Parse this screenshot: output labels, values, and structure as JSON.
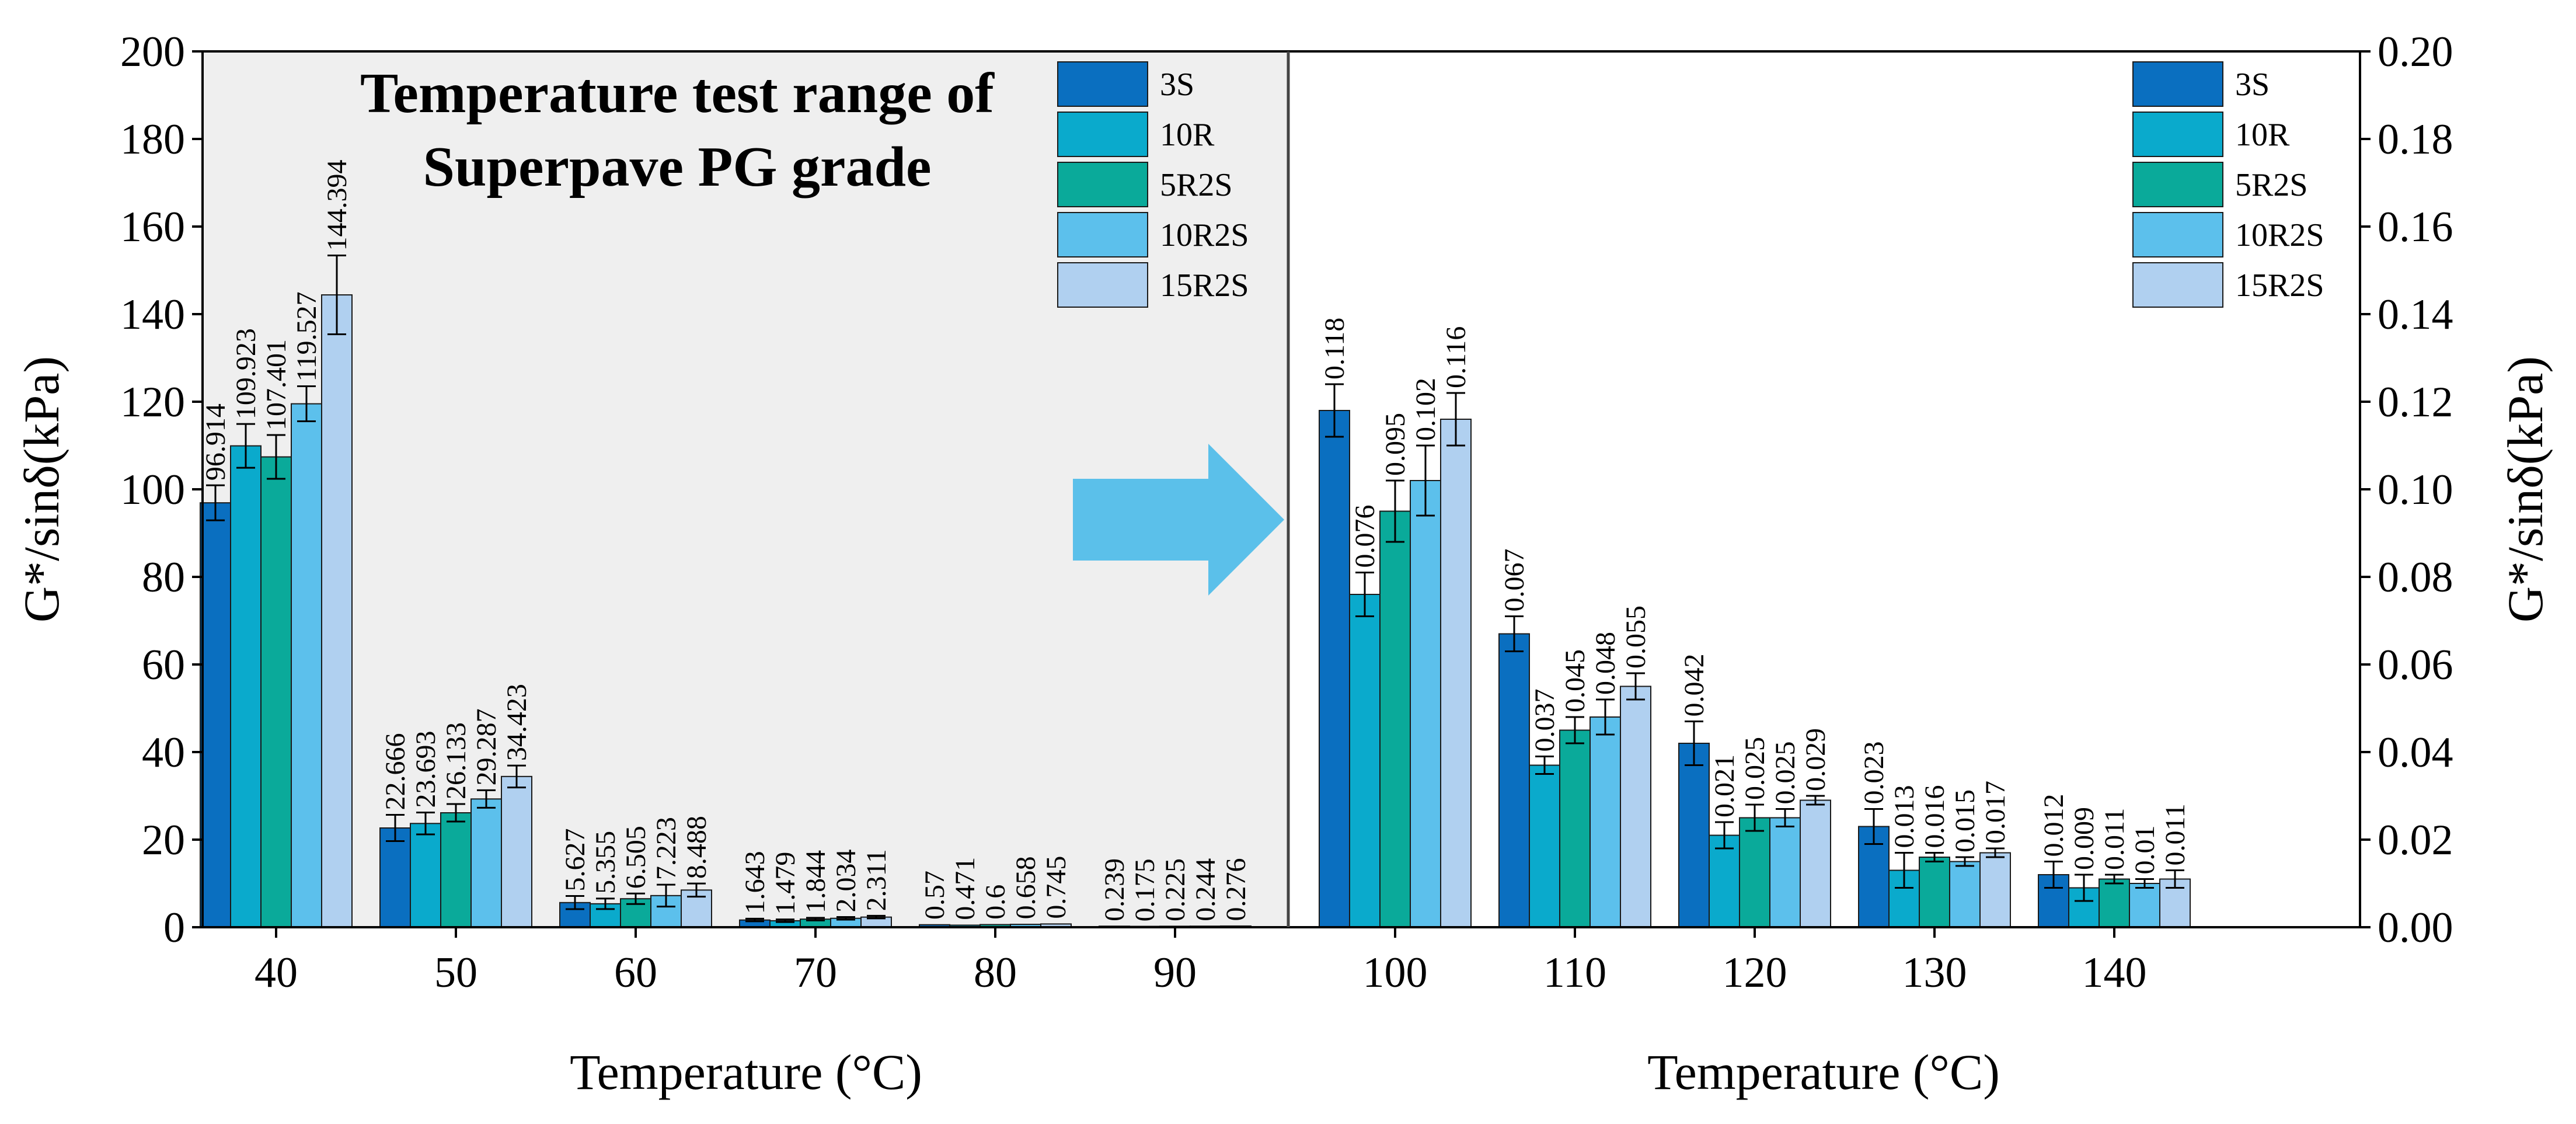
{
  "chart_data": [
    {
      "type": "bar",
      "panel": "left",
      "annotation_lines": [
        "Temperature test range of",
        "Superpave PG grade"
      ],
      "categories": [
        "40",
        "50",
        "60",
        "70",
        "80",
        "90"
      ],
      "xlabel": "Temperature (°C)",
      "ylabel": "G*/sinδ(kPa)",
      "ylim": [
        0,
        200
      ],
      "yticks": [
        "0",
        "20",
        "40",
        "60",
        "80",
        "100",
        "120",
        "140",
        "160",
        "180",
        "200"
      ],
      "legend_position": "top-right",
      "series": [
        {
          "name": "3S",
          "color": "#0a6fc0",
          "values": [
            96.914,
            22.666,
            5.627,
            1.643,
            0.57,
            0.239
          ],
          "errors": [
            4,
            3,
            1.5,
            0.3,
            0.1,
            0.05
          ],
          "labels": [
            "96.914",
            "22.666",
            "5.627",
            "1.643",
            "0.57",
            "0.239"
          ]
        },
        {
          "name": "10R",
          "color": "#0aaacc",
          "values": [
            109.923,
            23.693,
            5.355,
            1.479,
            0.471,
            0.175
          ],
          "errors": [
            5,
            2.5,
            1.2,
            0.3,
            0.1,
            0.05
          ],
          "labels": [
            "109.923",
            "23.693",
            "5.355",
            "1.479",
            "0.471",
            "0.175"
          ]
        },
        {
          "name": "5R2S",
          "color": "#0aaa9a",
          "values": [
            107.401,
            26.133,
            6.505,
            1.844,
            0.6,
            0.225
          ],
          "errors": [
            5,
            2,
            1.2,
            0.3,
            0.1,
            0.05
          ],
          "labels": [
            "107.401",
            "26.133",
            "6.505",
            "1.844",
            "0.6",
            "0.225"
          ]
        },
        {
          "name": "10R2S",
          "color": "#5cc0ec",
          "values": [
            119.527,
            29.287,
            7.223,
            2.034,
            0.658,
            0.244
          ],
          "errors": [
            4,
            2,
            2.5,
            0.3,
            0.1,
            0.05
          ],
          "labels": [
            "119.527",
            "29.287",
            "7.223",
            "2.034",
            "0.658",
            "0.244"
          ]
        },
        {
          "name": "15R2S",
          "color": "#b0d0f0",
          "values": [
            144.394,
            34.423,
            8.488,
            2.311,
            0.745,
            0.276
          ],
          "errors": [
            9,
            2.5,
            1.5,
            0.3,
            0.1,
            0.05
          ],
          "labels": [
            "144.394",
            "34.423",
            "8.488",
            "2.311",
            "0.745",
            "0.276"
          ]
        }
      ]
    },
    {
      "type": "bar",
      "panel": "right",
      "categories": [
        "100",
        "110",
        "120",
        "130",
        "140"
      ],
      "xlabel": "Temperature (°C)",
      "ylabel": "G*/sinδ(kPa)",
      "ylim": [
        0,
        0.2
      ],
      "yticks": [
        "0.00",
        "0.02",
        "0.04",
        "0.06",
        "0.08",
        "0.10",
        "0.12",
        "0.14",
        "0.16",
        "0.18",
        "0.20"
      ],
      "legend_position": "top-right",
      "series": [
        {
          "name": "3S",
          "color": "#0a6fc0",
          "values": [
            0.118,
            0.067,
            0.042,
            0.023,
            0.012
          ],
          "errors": [
            0.006,
            0.004,
            0.005,
            0.004,
            0.003
          ],
          "labels": [
            "0.118",
            "0.067",
            "0.042",
            "0.023",
            "0.012"
          ]
        },
        {
          "name": "10R",
          "color": "#0aaacc",
          "values": [
            0.076,
            0.037,
            0.021,
            0.013,
            0.009
          ],
          "errors": [
            0.005,
            0.002,
            0.003,
            0.004,
            0.003
          ],
          "labels": [
            "0.076",
            "0.037",
            "0.021",
            "0.013",
            "0.009"
          ]
        },
        {
          "name": "5R2S",
          "color": "#0aaa9a",
          "values": [
            0.095,
            0.045,
            0.025,
            0.016,
            0.011
          ],
          "errors": [
            0.007,
            0.003,
            0.003,
            0.001,
            0.001
          ],
          "labels": [
            "0.095",
            "0.045",
            "0.025",
            "0.016",
            "0.011"
          ]
        },
        {
          "name": "10R2S",
          "color": "#5cc0ec",
          "values": [
            0.102,
            0.048,
            0.025,
            0.015,
            0.01
          ],
          "errors": [
            0.008,
            0.004,
            0.002,
            0.001,
            0.001
          ],
          "labels": [
            "0.102",
            "0.048",
            "0.025",
            "0.015",
            "0.01"
          ]
        },
        {
          "name": "15R2S",
          "color": "#b0d0f0",
          "values": [
            0.116,
            0.055,
            0.029,
            0.017,
            0.011
          ],
          "errors": [
            0.006,
            0.003,
            0.001,
            0.001,
            0.002
          ],
          "labels": [
            "0.116",
            "0.055",
            "0.029",
            "0.017",
            "0.011"
          ]
        }
      ]
    }
  ],
  "colors": {
    "shaded_region": "#efefef",
    "arrow": "#5bc0ea",
    "axis": "#000000"
  },
  "icons": {
    "arrow": "right-arrow-icon"
  }
}
